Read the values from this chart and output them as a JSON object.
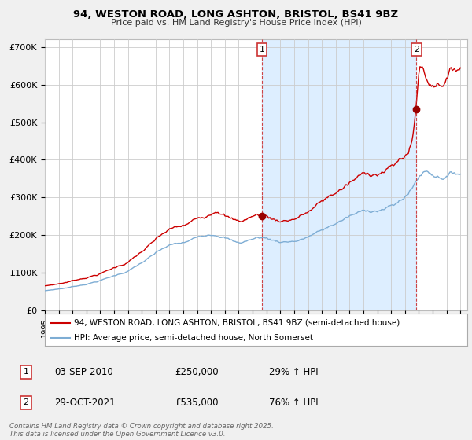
{
  "title_line1": "94, WESTON ROAD, LONG ASHTON, BRISTOL, BS41 9BZ",
  "title_line2": "Price paid vs. HM Land Registry's House Price Index (HPI)",
  "ylim": [
    0,
    720000
  ],
  "yticks": [
    0,
    100000,
    200000,
    300000,
    400000,
    500000,
    600000,
    700000
  ],
  "ytick_labels": [
    "£0",
    "£100K",
    "£200K",
    "£300K",
    "£400K",
    "£500K",
    "£600K",
    "£700K"
  ],
  "legend_entries": [
    "94, WESTON ROAD, LONG ASHTON, BRISTOL, BS41 9BZ (semi-detached house)",
    "HPI: Average price, semi-detached house, North Somerset"
  ],
  "legend_colors": [
    "#cc0000",
    "#7eadd4"
  ],
  "transaction1_label": "1",
  "transaction1_date": "03-SEP-2010",
  "transaction1_price": "£250,000",
  "transaction1_hpi": "29% ↑ HPI",
  "transaction1_x": 2010.67,
  "transaction1_y": 250000,
  "transaction2_label": "2",
  "transaction2_date": "29-OCT-2021",
  "transaction2_price": "£535,000",
  "transaction2_hpi": "76% ↑ HPI",
  "transaction2_x": 2021.83,
  "transaction2_y": 535000,
  "footnote": "Contains HM Land Registry data © Crown copyright and database right 2025.\nThis data is licensed under the Open Government Licence v3.0.",
  "background_color": "#f0f0f0",
  "plot_bg_color": "#ffffff",
  "shade_color": "#ddeeff",
  "grid_color": "#cccccc",
  "xlim_left": 1995.0,
  "xlim_right": 2025.5
}
